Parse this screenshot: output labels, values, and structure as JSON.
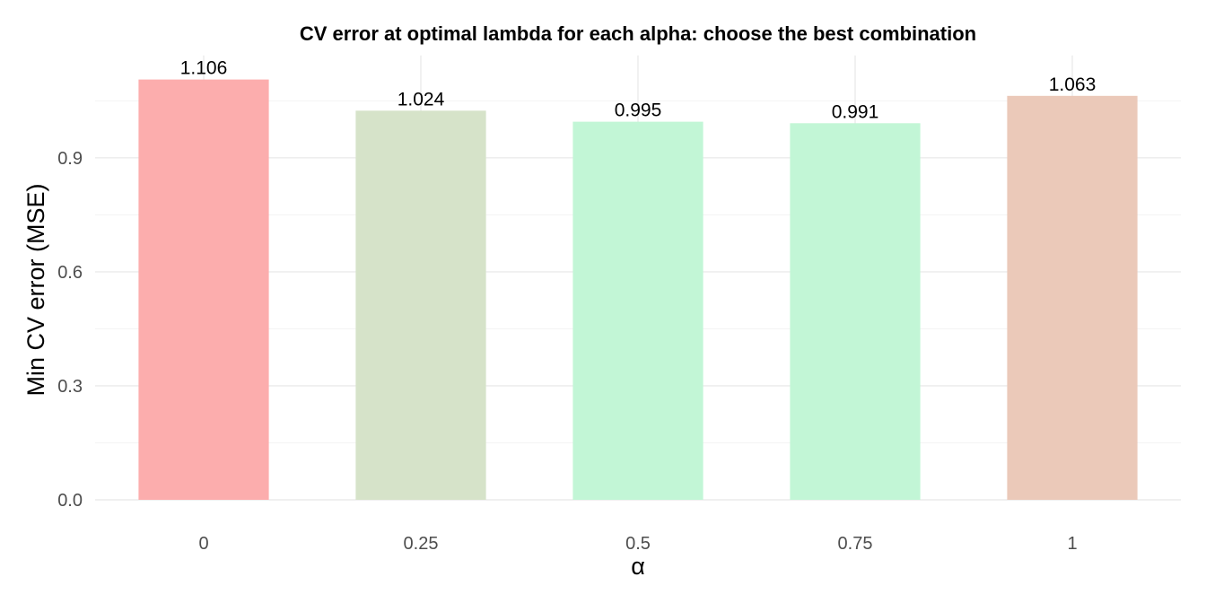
{
  "chart_data": {
    "type": "bar",
    "title": "CV error at optimal lambda for each alpha: choose the best combination",
    "xlabel": "α",
    "ylabel": "Min CV error (MSE)",
    "categories": [
      "0",
      "0.25",
      "0.5",
      "0.75",
      "1"
    ],
    "values": [
      1.106,
      1.024,
      0.995,
      0.991,
      1.063
    ],
    "data_labels": [
      "1.106",
      "1.024",
      "0.995",
      "0.991",
      "1.063"
    ],
    "bar_colors": [
      "#fcadad",
      "#d6e3c9",
      "#c2f6d6",
      "#c2f6d6",
      "#ebc9b9"
    ],
    "ylim": [
      0,
      1.16
    ],
    "yticks": [
      0,
      0.3,
      0.6,
      0.9
    ],
    "ytick_labels": [
      "0.0",
      "0.3",
      "0.6",
      "0.9"
    ],
    "grid": true,
    "legend": "none"
  }
}
